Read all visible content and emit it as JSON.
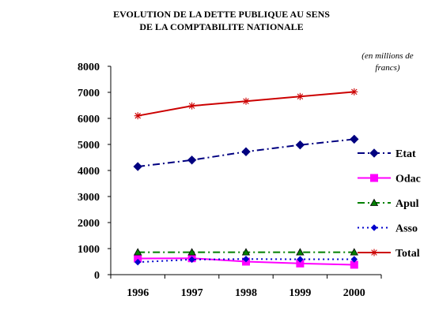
{
  "chart_data": {
    "type": "line",
    "title_line1": "EVOLUTION DE LA DETTE PUBLIQUE AU SENS",
    "title_line2": "DE LA COMPTABILITE NATIONALE",
    "unit_line1": "(en millions de",
    "unit_line2": "francs)",
    "xlabel": "",
    "ylabel": "",
    "x": [
      "1996",
      "1997",
      "1998",
      "1999",
      "2000"
    ],
    "ylim": [
      0,
      8000
    ],
    "yticks": [
      "0",
      "1000",
      "2000",
      "3000",
      "4000",
      "5000",
      "6000",
      "7000",
      "8000"
    ],
    "grid": false,
    "legend_position": "right",
    "series": [
      {
        "name": "Etat",
        "values": [
          4150,
          4400,
          4720,
          4980,
          5200
        ],
        "color": "#000080",
        "marker": "diamond",
        "dash": "dashdot"
      },
      {
        "name": "Odac",
        "values": [
          620,
          630,
          500,
          430,
          380
        ],
        "color": "#ff00ff",
        "marker": "square",
        "dash": "solid"
      },
      {
        "name": "Apul",
        "values": [
          860,
          860,
          860,
          860,
          860
        ],
        "color": "#008000",
        "marker": "triangle",
        "dash": "dashdot"
      },
      {
        "name": "Asso",
        "values": [
          480,
          580,
          600,
          590,
          590
        ],
        "color": "#0000cc",
        "marker": "diamond-small",
        "dash": "dotted"
      },
      {
        "name": "Total",
        "values": [
          6100,
          6480,
          6660,
          6840,
          7020
        ],
        "color": "#cc0000",
        "marker": "star",
        "dash": "solid"
      }
    ]
  }
}
